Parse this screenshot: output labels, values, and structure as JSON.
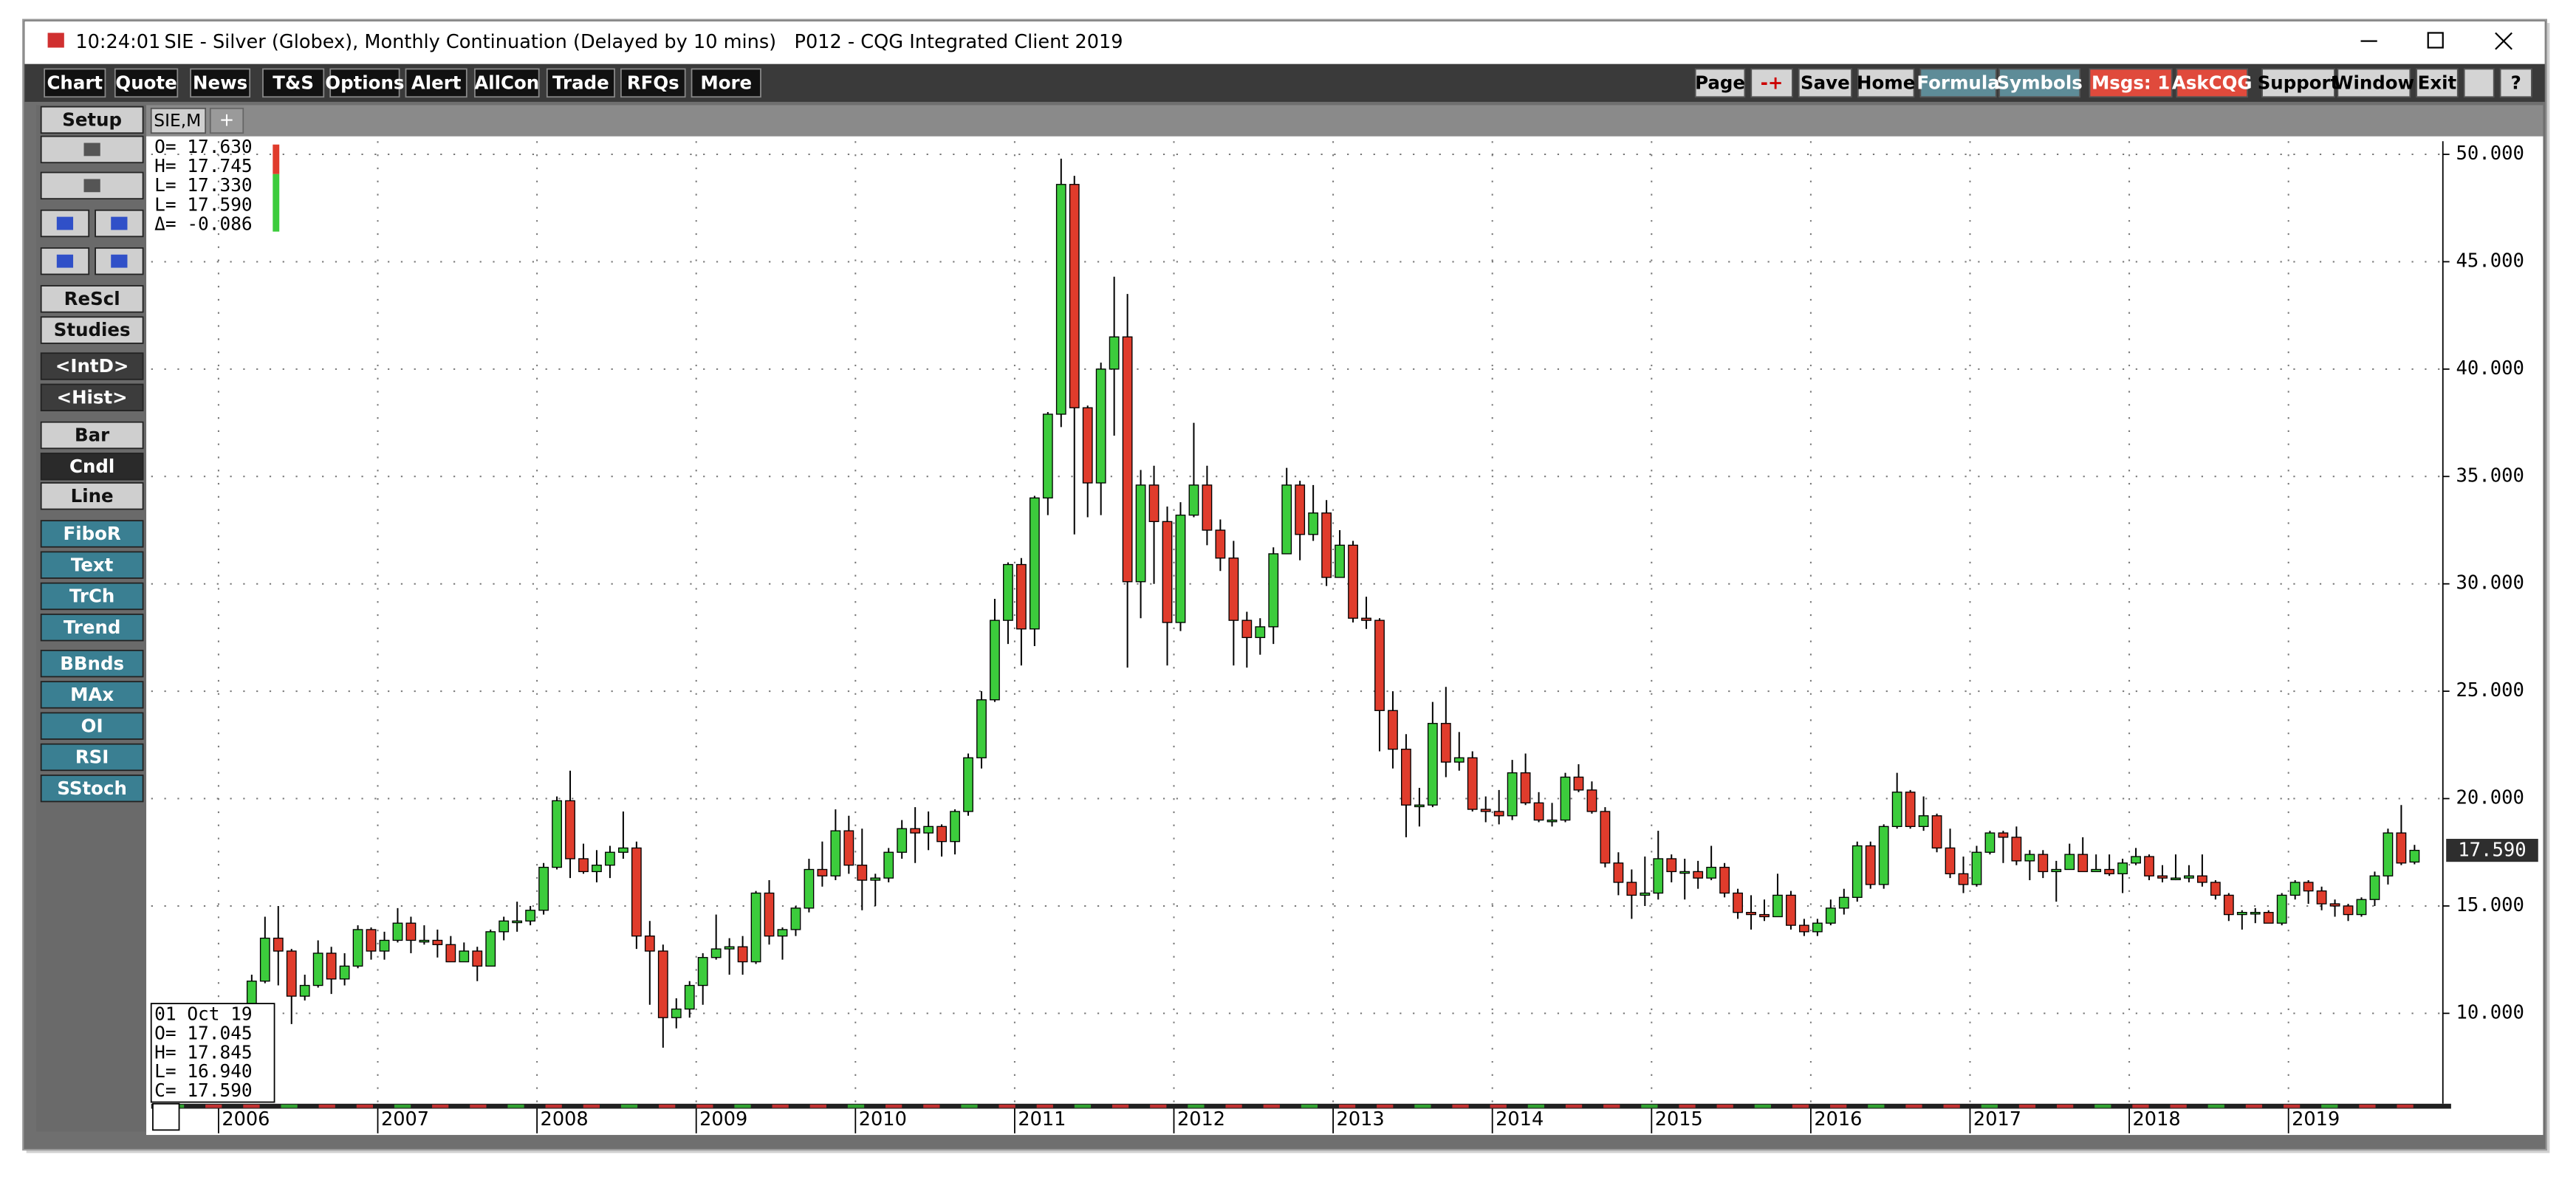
{
  "window": {
    "time": "10:24:01",
    "title": "SIE - Silver (Globex), Monthly Continuation (Delayed by 10 mins)   P012 - CQG Integrated Client 2019",
    "menu": [
      "Chart",
      "Quote",
      "News",
      "T&S",
      "Options",
      "Alert",
      "AllCon",
      "Trade",
      "RFQs",
      "More"
    ],
    "right_buttons": [
      "Page",
      "-+",
      "Save",
      "Home",
      "Formula",
      "Symbols",
      "Msgs: 1",
      "AskCQG",
      "Support",
      "Window",
      "Exit",
      "?"
    ],
    "side_buttons": [
      "Setup",
      "ReScl",
      "Studies",
      "<IntD>",
      "<Hist>",
      "Bar",
      "Cndl",
      "Line",
      "FiboR",
      "Text",
      "TrCh",
      "Trend",
      "BBnds",
      "MAx",
      "OI",
      "RSI",
      "SStoch"
    ],
    "tab": "SIE,M",
    "tab_add": "+",
    "quote_lines": [
      "O= 17.630",
      "H= 17.745",
      "L= 17.330",
      "L= 17.590",
      "Δ= -0.086"
    ],
    "bar_lines": [
      "01 Oct 19",
      "O=  17.045",
      "H=  17.845",
      "L=  16.940",
      "C=  17.590"
    ]
  },
  "chart_data": {
    "type": "candlestick",
    "categories": [
      "2006",
      null,
      null,
      null,
      null,
      null,
      null,
      null,
      null,
      null,
      null,
      null,
      "2007",
      null,
      null,
      null,
      null,
      null,
      null,
      null,
      null,
      null,
      null,
      null,
      "2008",
      null,
      null,
      null,
      null,
      null,
      null,
      null,
      null,
      null,
      null,
      null,
      "2009",
      null,
      null,
      null,
      null,
      null,
      null,
      null,
      null,
      null,
      null,
      null,
      "2010",
      null,
      null,
      null,
      null,
      null,
      null,
      null,
      null,
      null,
      null,
      null,
      "2011",
      null,
      null,
      null,
      null,
      null,
      null,
      null,
      null,
      null,
      null,
      null,
      "2012",
      null,
      null,
      null,
      null,
      null,
      null,
      null,
      null,
      null,
      null,
      null,
      "2013",
      null,
      null,
      null,
      null,
      null,
      null,
      null,
      null,
      null,
      null,
      null,
      "2014",
      null,
      null,
      null,
      null,
      null,
      null,
      null,
      null,
      null,
      null,
      null,
      "2015",
      null,
      null,
      null,
      null,
      null,
      null,
      null,
      null,
      null,
      null,
      null,
      "2016",
      null,
      null,
      null,
      null,
      null,
      null,
      null,
      null,
      null,
      null,
      null,
      "2017",
      null,
      null,
      null,
      null,
      null,
      null,
      null,
      null,
      null,
      null,
      null,
      "2018",
      null,
      null,
      null,
      null,
      null,
      null,
      null,
      null,
      null,
      null,
      null,
      "2019",
      null,
      null,
      null,
      null,
      null,
      null,
      null,
      null,
      null
    ],
    "open": [
      8.8,
      9.9,
      9.7,
      11.5,
      13.5,
      12.9,
      10.8,
      11.3,
      12.8,
      11.6,
      12.2,
      13.9,
      12.9,
      13.4,
      14.2,
      13.4,
      13.4,
      13.2,
      12.4,
      12.9,
      12.2,
      13.8,
      14.3,
      14.3,
      14.8,
      16.8,
      19.9,
      17.2,
      16.6,
      16.9,
      17.5,
      17.7,
      13.6,
      12.9,
      9.8,
      10.2,
      11.3,
      12.6,
      13.0,
      13.1,
      12.4,
      15.6,
      13.6,
      13.9,
      14.9,
      16.7,
      16.4,
      18.5,
      16.9,
      16.2,
      16.3,
      17.5,
      18.6,
      18.4,
      18.7,
      18.0,
      19.4,
      21.9,
      24.6,
      28.3,
      30.9,
      27.9,
      34.0,
      37.9,
      48.6,
      38.2,
      34.7,
      40.0,
      41.5,
      30.1,
      34.6,
      32.9,
      28.2,
      33.2,
      34.6,
      32.5,
      31.2,
      28.3,
      27.5,
      28.0,
      31.4,
      34.6,
      32.3,
      33.3,
      30.3,
      31.8,
      28.4,
      28.3,
      24.1,
      22.3,
      19.7,
      19.7,
      23.5,
      21.7,
      21.9,
      19.5,
      19.4,
      19.2,
      21.2,
      19.8,
      19.0,
      19.0,
      21.0,
      20.4,
      19.4,
      17.0,
      16.1,
      15.5,
      15.6,
      17.2,
      16.6,
      16.6,
      16.3,
      16.8,
      15.6,
      14.7,
      14.6,
      14.5,
      15.5,
      14.1,
      13.8,
      14.2,
      14.9,
      15.4,
      17.8,
      16.0,
      18.7,
      20.3,
      18.7,
      19.2,
      17.7,
      16.5,
      16.0,
      17.5,
      18.4,
      18.2,
      17.1,
      17.4,
      16.6,
      16.7,
      17.4,
      16.6,
      16.7,
      16.5,
      17.0,
      17.3,
      16.4,
      16.3,
      16.3,
      16.4,
      16.1,
      15.5,
      14.6,
      14.7,
      14.7,
      14.2,
      15.5,
      16.1,
      15.7,
      15.1,
      15.0,
      14.6,
      15.3,
      16.4,
      18.4,
      17.045
    ],
    "high": [
      10.1,
      10.2,
      11.8,
      14.5,
      15.0,
      13.0,
      11.8,
      13.4,
      13.1,
      12.8,
      14.1,
      14.0,
      13.8,
      14.9,
      14.5,
      14.1,
      13.9,
      13.6,
      13.3,
      13.1,
      13.9,
      14.5,
      15.2,
      15.0,
      17.0,
      20.1,
      21.3,
      17.9,
      17.6,
      17.8,
      19.4,
      18.0,
      14.3,
      13.2,
      10.7,
      11.5,
      12.8,
      14.6,
      13.5,
      13.6,
      15.7,
      16.2,
      14.0,
      15.0,
      17.2,
      18.0,
      19.5,
      19.2,
      18.6,
      16.5,
      17.7,
      19.0,
      19.6,
      19.4,
      18.8,
      19.5,
      22.1,
      25.0,
      29.3,
      31.0,
      31.2,
      34.1,
      38.0,
      49.8,
      49.0,
      38.3,
      40.3,
      44.3,
      43.5,
      35.3,
      35.5,
      33.6,
      33.8,
      37.5,
      35.5,
      33.0,
      32.0,
      28.7,
      28.4,
      31.7,
      35.4,
      34.8,
      34.6,
      33.9,
      32.5,
      32.0,
      29.4,
      28.4,
      25.0,
      23.0,
      20.5,
      24.5,
      25.2,
      23.1,
      22.2,
      20.1,
      20.4,
      21.8,
      22.1,
      20.3,
      19.8,
      21.2,
      21.6,
      20.8,
      19.6,
      17.5,
      16.7,
      17.3,
      18.5,
      17.4,
      17.2,
      17.1,
      17.8,
      17.0,
      15.8,
      15.5,
      15.3,
      16.5,
      15.7,
      14.4,
      14.4,
      15.3,
      15.8,
      18.0,
      18.0,
      18.8,
      21.2,
      20.4,
      20.1,
      19.3,
      18.6,
      17.3,
      17.8,
      18.5,
      18.5,
      18.7,
      17.6,
      17.6,
      17.1,
      17.9,
      18.2,
      17.4,
      17.4,
      17.2,
      17.7,
      17.4,
      16.9,
      17.4,
      16.9,
      17.4,
      16.2,
      15.6,
      14.8,
      14.9,
      14.8,
      15.6,
      16.2,
      16.2,
      15.9,
      15.3,
      15.1,
      15.4,
      16.6,
      18.6,
      19.7,
      17.845
    ],
    "low": [
      8.7,
      9.3,
      9.6,
      11.4,
      11.3,
      9.5,
      10.6,
      11.2,
      10.9,
      11.3,
      12.1,
      12.5,
      12.5,
      13.3,
      12.8,
      13.2,
      12.6,
      12.4,
      12.4,
      11.5,
      12.2,
      13.4,
      13.8,
      14.1,
      14.6,
      16.7,
      16.3,
      16.5,
      16.1,
      16.3,
      17.2,
      13.0,
      10.4,
      8.4,
      9.3,
      9.8,
      10.4,
      12.5,
      11.8,
      11.8,
      12.3,
      13.2,
      12.5,
      13.6,
      14.7,
      15.9,
      16.2,
      16.5,
      14.8,
      15.0,
      16.1,
      17.2,
      17.0,
      17.6,
      17.3,
      17.4,
      19.2,
      21.4,
      24.5,
      27.2,
      26.2,
      27.1,
      33.2,
      37.3,
      32.3,
      33.1,
      33.2,
      36.9,
      26.1,
      28.4,
      30.0,
      26.2,
      27.8,
      33.1,
      31.8,
      30.6,
      26.2,
      26.1,
      26.7,
      27.2,
      31.4,
      31.1,
      32.0,
      29.9,
      30.3,
      28.2,
      27.9,
      22.2,
      21.4,
      18.2,
      18.7,
      19.6,
      21.0,
      21.3,
      19.4,
      18.9,
      18.8,
      19.0,
      19.7,
      18.9,
      18.7,
      18.9,
      20.3,
      19.3,
      16.8,
      15.5,
      14.4,
      15.0,
      15.3,
      16.1,
      15.3,
      15.8,
      16.2,
      15.4,
      14.4,
      13.9,
      14.3,
      14.5,
      13.9,
      13.6,
      13.6,
      14.1,
      14.6,
      15.2,
      15.8,
      15.8,
      18.6,
      18.6,
      18.5,
      17.5,
      16.3,
      15.6,
      15.9,
      17.4,
      17.0,
      16.9,
      16.2,
      16.3,
      15.2,
      16.7,
      16.6,
      16.6,
      16.4,
      15.6,
      16.9,
      16.2,
      16.1,
      16.2,
      16.1,
      15.9,
      15.3,
      14.3,
      13.9,
      14.2,
      14.2,
      14.1,
      15.3,
      15.1,
      14.8,
      14.5,
      14.3,
      14.5,
      15.0,
      16.0,
      16.9,
      16.94
    ],
    "close": [
      9.9,
      9.7,
      11.5,
      13.5,
      12.9,
      10.8,
      11.3,
      12.8,
      11.6,
      12.2,
      13.9,
      12.9,
      13.4,
      14.2,
      13.4,
      13.4,
      13.2,
      12.4,
      12.9,
      12.2,
      13.8,
      14.3,
      14.3,
      14.8,
      16.8,
      19.9,
      17.2,
      16.6,
      16.9,
      17.5,
      17.7,
      13.6,
      12.9,
      9.8,
      10.2,
      11.3,
      12.6,
      13.0,
      13.1,
      12.4,
      15.6,
      13.6,
      13.9,
      14.9,
      16.7,
      16.4,
      18.5,
      16.9,
      16.2,
      16.3,
      17.5,
      18.6,
      18.4,
      18.7,
      18.0,
      19.4,
      21.9,
      24.6,
      28.3,
      30.9,
      27.9,
      34.0,
      37.9,
      48.6,
      38.2,
      34.7,
      40.0,
      41.5,
      30.1,
      34.6,
      32.9,
      28.2,
      33.2,
      34.6,
      32.5,
      31.2,
      28.3,
      27.5,
      28.0,
      31.4,
      34.6,
      32.3,
      33.3,
      30.3,
      31.8,
      28.4,
      28.3,
      24.1,
      22.3,
      19.7,
      19.7,
      23.5,
      21.7,
      21.9,
      19.5,
      19.4,
      19.2,
      21.2,
      19.8,
      19.0,
      19.0,
      21.0,
      20.4,
      19.4,
      17.0,
      16.1,
      15.5,
      15.6,
      17.2,
      16.6,
      16.6,
      16.3,
      16.8,
      15.6,
      14.7,
      14.6,
      14.5,
      15.5,
      14.1,
      13.8,
      14.2,
      14.9,
      15.4,
      17.8,
      16.0,
      18.7,
      20.3,
      18.7,
      19.2,
      17.7,
      16.5,
      16.0,
      17.5,
      18.4,
      18.2,
      17.1,
      17.4,
      16.6,
      16.7,
      17.4,
      16.6,
      16.7,
      16.5,
      17.0,
      17.3,
      16.4,
      16.3,
      16.3,
      16.4,
      16.1,
      15.5,
      14.6,
      14.7,
      14.7,
      14.2,
      15.5,
      16.1,
      15.7,
      15.1,
      15.0,
      14.6,
      15.3,
      16.4,
      18.4,
      17.0,
      17.59
    ],
    "up_color": "#3ccc3c",
    "down_color": "#e03c2c",
    "ylim": [
      5.79,
      50.61
    ],
    "yticks": [
      {
        "value": 10,
        "label": "10.000"
      },
      {
        "value": 15,
        "label": "15.000"
      },
      {
        "value": 20,
        "label": "20.000"
      },
      {
        "value": 25,
        "label": "25.000"
      },
      {
        "value": 30,
        "label": "30.000"
      },
      {
        "value": 35,
        "label": "35.000"
      },
      {
        "value": 40,
        "label": "40.000"
      },
      {
        "value": 45,
        "label": "45.000"
      },
      {
        "value": 50,
        "label": "50.000"
      }
    ],
    "last_price_label": "17.590",
    "grid": true
  }
}
